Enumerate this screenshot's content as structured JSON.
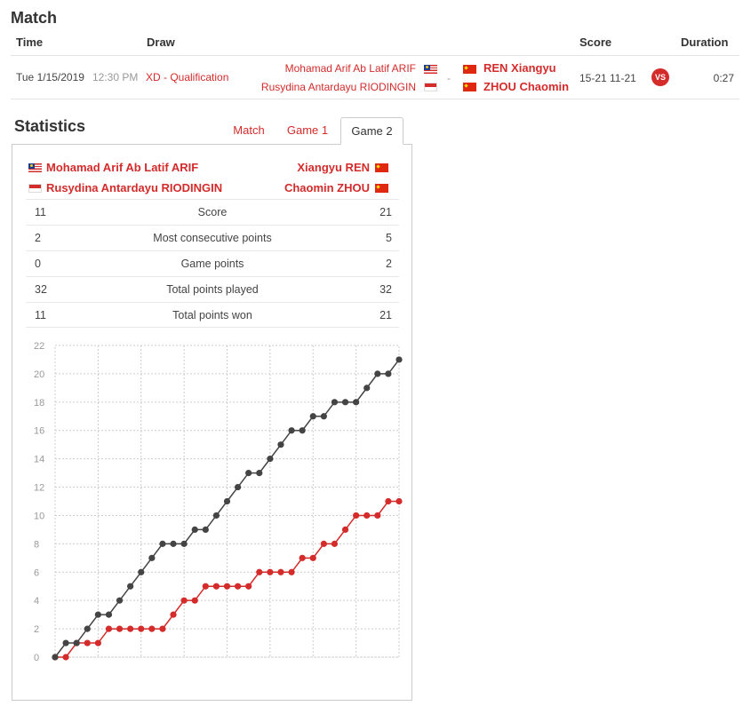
{
  "header": {
    "title": "Match"
  },
  "columns": {
    "time": "Time",
    "draw": "Draw",
    "score": "Score",
    "duration": "Duration"
  },
  "match": {
    "date": "Tue 1/15/2019",
    "time": "12:30 PM",
    "draw": "XD - Qualification",
    "team1": [
      "Mohamad Arif Ab Latif ARIF",
      "Rusydina Antardayu RIODINGIN"
    ],
    "separator": "-",
    "team2": [
      "REN Xiangyu",
      "ZHOU Chaomin"
    ],
    "score": "15-21 11-21",
    "vs": "VS",
    "duration": "0:27"
  },
  "stats": {
    "title": "Statistics",
    "tabs": [
      "Match",
      "Game 1",
      "Game 2"
    ],
    "active_tab": "Game 2",
    "left_players": [
      "Mohamad Arif Ab Latif ARIF",
      "Rusydina Antardayu RIODINGIN"
    ],
    "right_players": [
      "Xiangyu REN",
      "Chaomin ZHOU"
    ],
    "rows": [
      {
        "label": "Score",
        "left": "11",
        "right": "21"
      },
      {
        "label": "Most consecutive points",
        "left": "2",
        "right": "5"
      },
      {
        "label": "Game points",
        "left": "0",
        "right": "2"
      },
      {
        "label": "Total points played",
        "left": "32",
        "right": "32"
      },
      {
        "label": "Total points won",
        "left": "11",
        "right": "21"
      }
    ]
  },
  "colors": {
    "accent": "#d42b2b",
    "opponent_line": "#444444",
    "grid": "#cccccc"
  },
  "chart_data": {
    "type": "line",
    "x": [
      0,
      1,
      2,
      3,
      4,
      5,
      6,
      7,
      8,
      9,
      10,
      11,
      12,
      13,
      14,
      15,
      16,
      17,
      18,
      19,
      20,
      21,
      22,
      23,
      24,
      25,
      26,
      27,
      28,
      29,
      30,
      31,
      32
    ],
    "series": [
      {
        "values": [
          0,
          0,
          1,
          1,
          1,
          2,
          2,
          2,
          2,
          2,
          2,
          3,
          4,
          4,
          5,
          5,
          5,
          5,
          5,
          6,
          6,
          6,
          6,
          7,
          7,
          8,
          8,
          9,
          10,
          10,
          10,
          11,
          11
        ]
      },
      {
        "values": [
          0,
          1,
          1,
          2,
          3,
          3,
          4,
          5,
          6,
          7,
          8,
          8,
          8,
          9,
          9,
          10,
          11,
          12,
          13,
          13,
          14,
          15,
          16,
          16,
          17,
          17,
          18,
          18,
          18,
          19,
          20,
          20,
          21
        ]
      }
    ],
    "ylim": [
      0,
      22
    ],
    "yticks": [
      0,
      2,
      4,
      6,
      8,
      10,
      12,
      14,
      16,
      18,
      20,
      22
    ],
    "grid": true,
    "legend": "none"
  }
}
